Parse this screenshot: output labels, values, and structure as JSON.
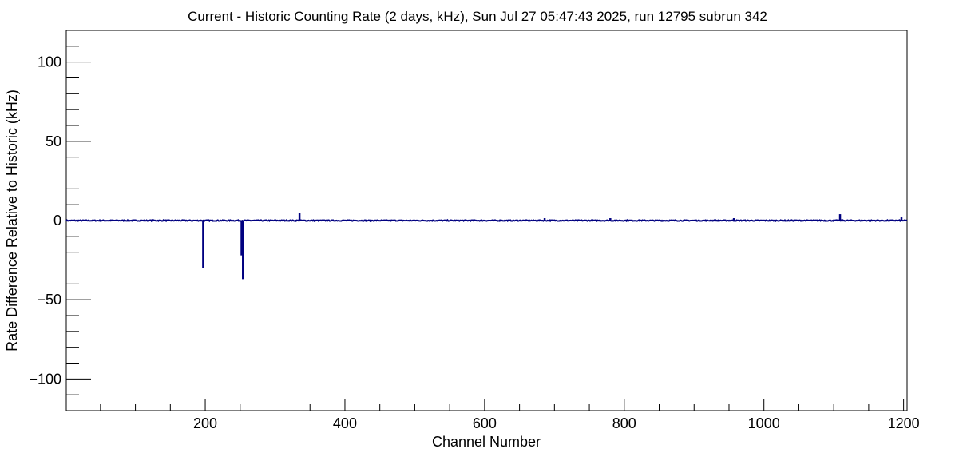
{
  "chart_data": {
    "type": "line",
    "title": "Current - Historic Counting Rate (2 days, kHz), Sun Jul 27 05:47:43 2025, run 12795 subrun 342",
    "xlabel": "Channel Number",
    "ylabel": "Rate Difference Relative to Historic (kHz)",
    "xlim": [
      1,
      1205
    ],
    "ylim": [
      -120,
      120
    ],
    "x_ticks": [
      200,
      400,
      600,
      800,
      1000,
      1200
    ],
    "x_tick_labels": [
      "200",
      "400",
      "600",
      "800",
      "1000",
      "1200"
    ],
    "x_minor_step": 50,
    "y_ticks": [
      -100,
      -50,
      0,
      50,
      100
    ],
    "y_tick_labels": [
      "−100",
      "−50",
      "0",
      "50",
      "100"
    ],
    "y_minor_step": 10,
    "grid": false,
    "line_color": "#000080",
    "series": [
      {
        "baseline": 0,
        "noise": 0.6,
        "spikes": [
          {
            "x": 197,
            "y": -30
          },
          {
            "x": 252,
            "y": -22
          },
          {
            "x": 254,
            "y": -37
          },
          {
            "x": 335,
            "y": 5
          },
          {
            "x": 686,
            "y": 1.5
          },
          {
            "x": 780,
            "y": 1.5
          },
          {
            "x": 957,
            "y": 1.5
          },
          {
            "x": 1109,
            "y": 4
          },
          {
            "x": 1197,
            "y": 2
          }
        ]
      }
    ]
  }
}
